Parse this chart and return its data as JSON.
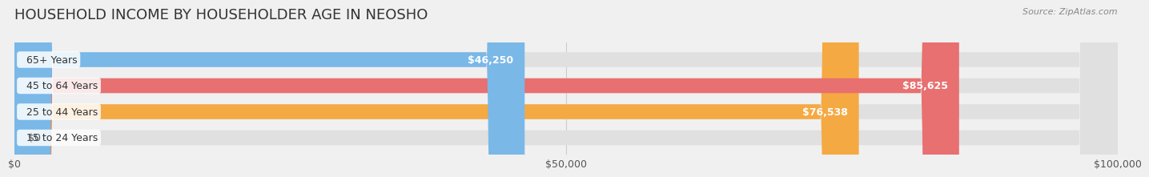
{
  "title": "HOUSEHOLD INCOME BY HOUSEHOLDER AGE IN NEOSHO",
  "source": "Source: ZipAtlas.com",
  "categories": [
    "15 to 24 Years",
    "25 to 44 Years",
    "45 to 64 Years",
    "65+ Years"
  ],
  "values": [
    0,
    76538,
    85625,
    46250
  ],
  "bar_colors": [
    "#f4a8bc",
    "#f5a942",
    "#e87070",
    "#7ab8e8"
  ],
  "background_color": "#f0f0f0",
  "bar_bg_color": "#e8e8e8",
  "xlim": [
    0,
    100000
  ],
  "xticks": [
    0,
    50000,
    100000
  ],
  "xtick_labels": [
    "$0",
    "$50,000",
    "$100,000"
  ],
  "bar_height": 0.55,
  "label_color_inside": "#ffffff",
  "label_color_outside": "#555555",
  "title_fontsize": 13,
  "tick_fontsize": 9,
  "label_fontsize": 9,
  "cat_fontsize": 9
}
